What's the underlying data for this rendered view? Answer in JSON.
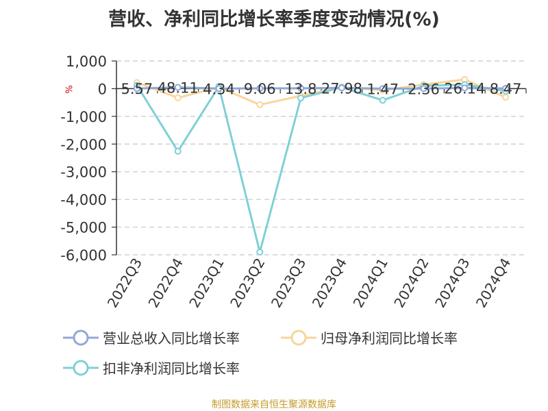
{
  "chart_data": {
    "type": "line",
    "title": "营收、净利同比增长率季度变动情况(%)",
    "unit": "%",
    "categories": [
      "2022Q3",
      "2022Q4",
      "2023Q1",
      "2023Q2",
      "2023Q3",
      "2023Q4",
      "2024Q1",
      "2024Q2",
      "2024Q3",
      "2024Q4"
    ],
    "ylim": [
      -6000,
      1000
    ],
    "yticks": [
      1000,
      0,
      -1000,
      -2000,
      -3000,
      -4000,
      -5000,
      -6000
    ],
    "ytick_labels": [
      "1,000",
      "0",
      "-1,000",
      "-2,000",
      "-3,000",
      "-4,000",
      "-5,000",
      "-6,000"
    ],
    "grid": true,
    "legend_position": "bottom",
    "series": [
      {
        "name": "营业总收入同比增长率",
        "color": "#8fa8d8",
        "values": [
          5.57,
          48.11,
          4.34,
          9.06,
          13.8,
          27.98,
          1.47,
          2.36,
          26.14,
          8.47
        ],
        "data_labels": [
          "5.57",
          "48.11",
          "4.34",
          "9.06",
          "13.8",
          "27.98",
          "1.47",
          "2.36",
          "26.14",
          "8.47"
        ]
      },
      {
        "name": "归母净利润同比增长率",
        "color": "#f8d59a",
        "values": [
          220,
          -330,
          50,
          -580,
          -260,
          60,
          -60,
          150,
          330,
          -310
        ]
      },
      {
        "name": "扣非净利润同比增长率",
        "color": "#7fd0d6",
        "values": [
          120,
          -2260,
          80,
          -5900,
          -340,
          50,
          -420,
          100,
          150,
          -90
        ]
      }
    ]
  },
  "footer": {
    "source": "制图数据来自恒生聚源数据库"
  }
}
